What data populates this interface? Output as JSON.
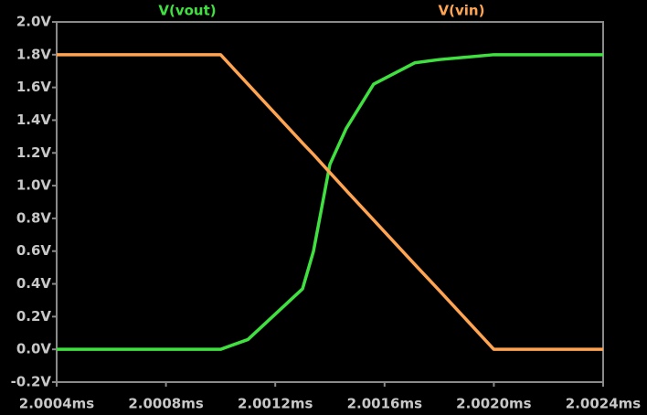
{
  "chart_data": {
    "type": "line",
    "x": [
      2.0004,
      2.001,
      2.0011,
      2.0013,
      2.00134,
      2.0014,
      2.00146,
      2.00156,
      2.00171,
      2.0018,
      2.002,
      2.0024
    ],
    "series": [
      {
        "name": "V(vout)",
        "color": "#3fe03f",
        "values": [
          0,
          0,
          0.06,
          0.37,
          0.6,
          1.13,
          1.35,
          1.62,
          1.75,
          1.77,
          1.8,
          1.8
        ]
      },
      {
        "name": "V(vin)",
        "color": "#ffa552",
        "values": [
          1.8,
          1.8,
          1.62,
          1.26,
          1.19,
          1.08,
          0.97,
          0.79,
          0.52,
          0.36,
          0,
          0
        ]
      }
    ],
    "xlim": [
      2.0004,
      2.0024
    ],
    "xticks": [
      {
        "value": 2.0004,
        "label": "2.0004ms"
      },
      {
        "value": 2.0008,
        "label": "2.0008ms"
      },
      {
        "value": 2.0012,
        "label": "2.0012ms"
      },
      {
        "value": 2.0016,
        "label": "2.0016ms"
      },
      {
        "value": 2.002,
        "label": "2.0020ms"
      },
      {
        "value": 2.0024,
        "label": "2.0024ms"
      }
    ],
    "ylim": [
      -0.2,
      2.0
    ],
    "yticks": [
      {
        "value": -0.2,
        "label": "-0.2V"
      },
      {
        "value": 0,
        "label": "0.0V"
      },
      {
        "value": 0.2,
        "label": "0.2V"
      },
      {
        "value": 0.4,
        "label": "0.4V"
      },
      {
        "value": 0.6,
        "label": "0.6V"
      },
      {
        "value": 0.8,
        "label": "0.8V"
      },
      {
        "value": 1.0,
        "label": "1.0V"
      },
      {
        "value": 1.2,
        "label": "1.2V"
      },
      {
        "value": 1.4,
        "label": "1.4V"
      },
      {
        "value": 1.6,
        "label": "1.6V"
      },
      {
        "value": 1.8,
        "label": "1.8V"
      },
      {
        "value": 2.0,
        "label": "2.0V"
      }
    ],
    "grid": false
  }
}
